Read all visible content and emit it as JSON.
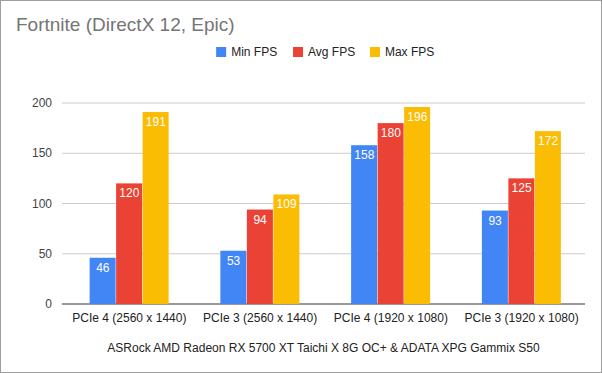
{
  "chart_data": {
    "type": "bar",
    "title": "Fortnite (DirectX 12, Epic)",
    "x_label": "ASRock AMD Radeon RX 5700 XT Taichi X 8G OC+ & ADATA XPG Gammix S50",
    "categories": [
      "PCIe 4 (2560 x 1440)",
      "PCIe 3 (2560 x 1440)",
      "PCIe 4 (1920 x 1080)",
      "PCIe 3 (1920 x 1080)"
    ],
    "series": [
      {
        "name": "Min FPS",
        "color": "#4285f4",
        "values": [
          46,
          53,
          158,
          93
        ]
      },
      {
        "name": "Avg FPS",
        "color": "#ea4335",
        "values": [
          120,
          94,
          180,
          125
        ]
      },
      {
        "name": "Max FPS",
        "color": "#fbbc04",
        "values": [
          191,
          109,
          196,
          172
        ]
      }
    ],
    "ylim": [
      0,
      200
    ],
    "yticks": [
      0,
      50,
      100,
      150,
      200
    ],
    "grid": true,
    "legend": "top",
    "data_labels": true
  }
}
